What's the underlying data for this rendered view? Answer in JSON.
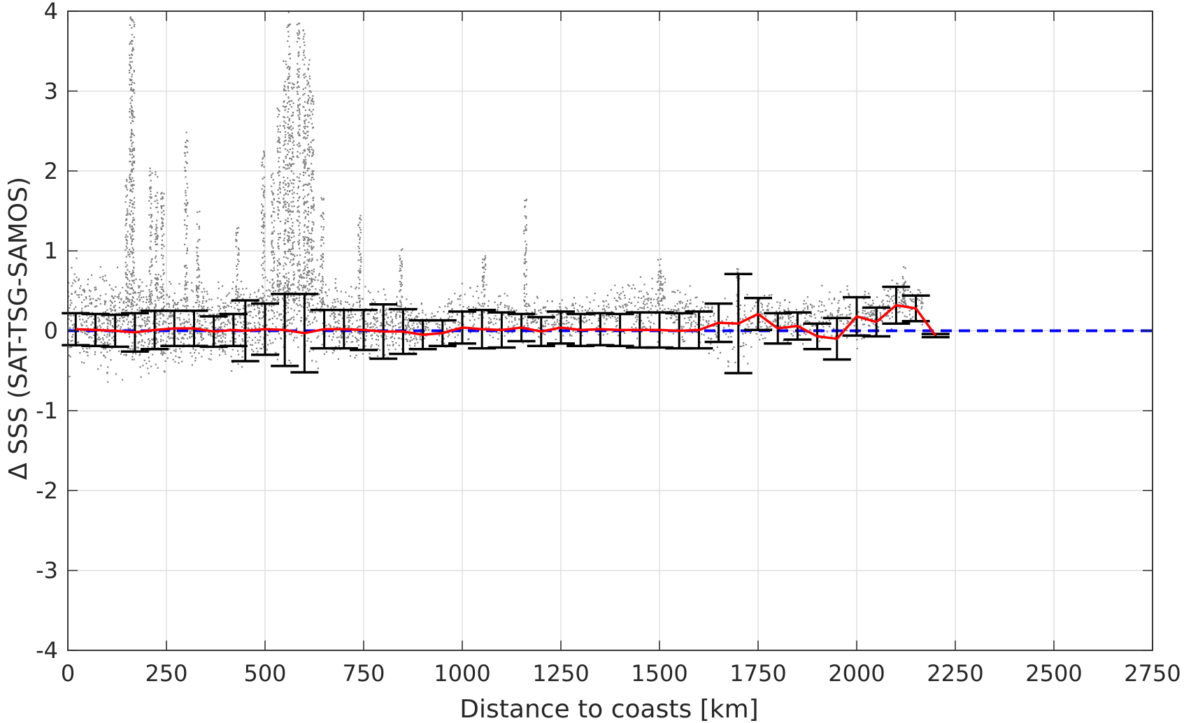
{
  "chart_data": {
    "type": "scatter",
    "xlabel": "Distance to coasts [km]",
    "ylabel": "Δ SSS (SAT-TSG-SAMOS)",
    "xlim": [
      0,
      2750
    ],
    "ylim": [
      -4,
      4
    ],
    "xticks": [
      0,
      250,
      500,
      750,
      1000,
      1250,
      1500,
      1750,
      2000,
      2250,
      2500,
      2750
    ],
    "yticks": [
      -4,
      -3,
      -2,
      -1,
      0,
      1,
      2,
      3,
      4
    ],
    "xtick_labels": [
      "0",
      "250",
      "500",
      "750",
      "1000",
      "1250",
      "1500",
      "1750",
      "2000",
      "2250",
      "2500",
      "2750"
    ],
    "ytick_labels": [
      "-4",
      "-3",
      "-2",
      "-1",
      "0",
      "1",
      "2",
      "3",
      "4"
    ],
    "grid": true,
    "legend": "none",
    "colors": {
      "scatter": "#808080",
      "mean_line": "#ff0000",
      "zero_line": "#0000ff",
      "error_bars": "#000000",
      "grid": "#d9d9d9",
      "axes": "#262626"
    },
    "scatter_envelope": {
      "description_units": "data",
      "x": [
        0,
        50,
        100,
        150,
        200,
        250,
        300,
        350,
        400,
        450,
        500,
        550,
        600,
        650,
        700,
        750,
        800,
        850,
        900,
        950,
        1000,
        1050,
        1100,
        1150,
        1200,
        1250,
        1300,
        1350,
        1400,
        1450,
        1500,
        1550,
        1600,
        1650,
        1700,
        1750,
        1800,
        1850,
        1900,
        1950,
        2000,
        2050,
        2100,
        2150
      ],
      "lower": [
        -0.8,
        -0.7,
        -0.75,
        -0.7,
        -0.85,
        -0.65,
        -0.6,
        -0.55,
        -0.55,
        -0.6,
        -0.6,
        -0.55,
        -0.55,
        -0.5,
        -0.5,
        -0.55,
        -0.55,
        -0.35,
        -0.3,
        -0.3,
        -0.3,
        -0.25,
        -0.25,
        -0.2,
        -0.2,
        -0.2,
        -0.2,
        -0.2,
        -0.2,
        -0.25,
        -0.25,
        -0.25,
        -0.25,
        -0.5,
        -0.7,
        -0.25,
        -0.2,
        -0.2,
        -0.3,
        -0.3,
        -0.3,
        -0.1,
        0.0,
        0.0
      ],
      "upper": [
        1.1,
        1.0,
        0.9,
        1.0,
        1.0,
        0.8,
        0.7,
        0.75,
        0.7,
        0.8,
        0.9,
        1.3,
        1.3,
        0.9,
        0.7,
        0.7,
        0.6,
        0.5,
        0.4,
        0.4,
        0.8,
        0.7,
        0.6,
        0.5,
        0.5,
        0.5,
        0.5,
        0.6,
        0.7,
        0.8,
        0.9,
        0.7,
        0.5,
        0.6,
        0.6,
        0.6,
        0.5,
        0.5,
        0.6,
        0.6,
        0.6,
        0.5,
        0.8,
        0.6
      ]
    },
    "scatter_spikes": [
      {
        "x": 160,
        "ymax": 4.0
      },
      {
        "x": 165,
        "ymax": 3.9
      },
      {
        "x": 150,
        "ymax": 1.9
      },
      {
        "x": 210,
        "ymax": 2.1
      },
      {
        "x": 225,
        "ymax": 2.0
      },
      {
        "x": 240,
        "ymax": 1.8
      },
      {
        "x": 300,
        "ymax": 2.5
      },
      {
        "x": 330,
        "ymax": 1.5
      },
      {
        "x": 430,
        "ymax": 1.3
      },
      {
        "x": 495,
        "ymax": 2.3
      },
      {
        "x": 520,
        "ymax": 2.0
      },
      {
        "x": 535,
        "ymax": 2.8
      },
      {
        "x": 550,
        "ymax": 3.4
      },
      {
        "x": 560,
        "ymax": 4.0
      },
      {
        "x": 570,
        "ymax": 3.1
      },
      {
        "x": 585,
        "ymax": 3.9
      },
      {
        "x": 600,
        "ymax": 3.8
      },
      {
        "x": 610,
        "ymax": 3.4
      },
      {
        "x": 620,
        "ymax": 3.0
      },
      {
        "x": 645,
        "ymax": 1.7
      },
      {
        "x": 740,
        "ymax": 1.5
      },
      {
        "x": 845,
        "ymax": 1.1
      },
      {
        "x": 1055,
        "ymax": 0.95
      },
      {
        "x": 1160,
        "ymax": 1.7
      },
      {
        "x": 1500,
        "ymax": 0.9
      },
      {
        "x": 1700,
        "ymax": 0.8
      },
      {
        "x": 2120,
        "ymax": 0.8
      }
    ],
    "bins": {
      "x": [
        20,
        70,
        120,
        170,
        220,
        270,
        320,
        370,
        420,
        450,
        500,
        550,
        600,
        650,
        700,
        750,
        800,
        850,
        900,
        950,
        1000,
        1050,
        1100,
        1150,
        1200,
        1250,
        1300,
        1350,
        1400,
        1450,
        1500,
        1550,
        1600,
        1650,
        1700,
        1750,
        1800,
        1850,
        1900,
        1950,
        2000,
        2050,
        2100,
        2150,
        2200
      ],
      "mean": [
        0.02,
        0.01,
        0.0,
        -0.02,
        0.01,
        0.03,
        0.03,
        -0.01,
        0.01,
        0.0,
        0.02,
        0.01,
        -0.03,
        0.02,
        0.02,
        0.01,
        -0.01,
        -0.01,
        -0.05,
        -0.03,
        0.04,
        0.02,
        0.01,
        0.04,
        -0.01,
        0.04,
        0.01,
        0.02,
        0.01,
        0.01,
        0.01,
        0.0,
        0.01,
        0.1,
        0.09,
        0.21,
        0.03,
        0.06,
        -0.07,
        -0.1,
        0.18,
        0.11,
        0.32,
        0.28,
        -0.06
      ],
      "std": [
        0.2,
        0.2,
        0.2,
        0.24,
        0.24,
        0.22,
        0.22,
        0.19,
        0.2,
        0.38,
        0.32,
        0.45,
        0.49,
        0.24,
        0.24,
        0.25,
        0.34,
        0.28,
        0.18,
        0.16,
        0.2,
        0.24,
        0.22,
        0.17,
        0.18,
        0.2,
        0.2,
        0.2,
        0.2,
        0.22,
        0.22,
        0.22,
        0.23,
        0.24,
        0.62,
        0.2,
        0.19,
        0.17,
        0.16,
        0.26,
        0.24,
        0.18,
        0.23,
        0.16,
        0.02
      ]
    },
    "zero_line": {
      "y": 0,
      "x": [
        0,
        2750
      ]
    }
  }
}
